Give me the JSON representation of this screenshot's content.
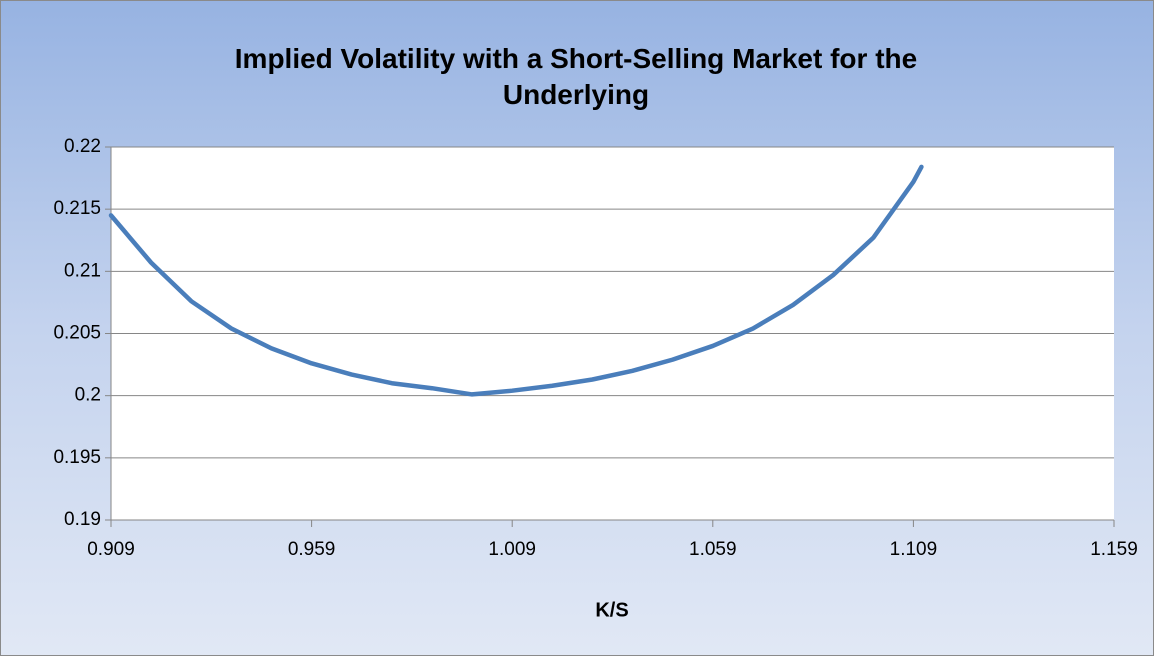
{
  "chart_data": {
    "type": "line",
    "title": "Implied Volatility with a Short-Selling Market for the Underlying",
    "x_label": "K/S",
    "x": [
      0.909,
      0.919,
      0.929,
      0.939,
      0.949,
      0.959,
      0.969,
      0.979,
      0.989,
      0.999,
      1.009,
      1.019,
      1.029,
      1.039,
      1.049,
      1.059,
      1.069,
      1.079,
      1.089,
      1.099,
      1.109,
      1.111
    ],
    "series": [
      {
        "name": "Implied Volatility",
        "color": "#4a7ebb",
        "values": [
          0.2145,
          0.2107,
          0.2076,
          0.2054,
          0.2038,
          0.2026,
          0.2017,
          0.201,
          0.2006,
          0.2001,
          0.2004,
          0.2008,
          0.2013,
          0.202,
          0.2029,
          0.204,
          0.2054,
          0.2073,
          0.2097,
          0.2127,
          0.2172,
          0.2184
        ]
      }
    ],
    "xlim": [
      0.909,
      1.159
    ],
    "xticks": [
      0.909,
      0.959,
      1.009,
      1.059,
      1.109,
      1.159
    ],
    "ylim": [
      0.19,
      0.22
    ],
    "yticks": [
      0.19,
      0.195,
      0.2,
      0.205,
      0.21,
      0.215,
      0.22
    ],
    "grid": true
  }
}
